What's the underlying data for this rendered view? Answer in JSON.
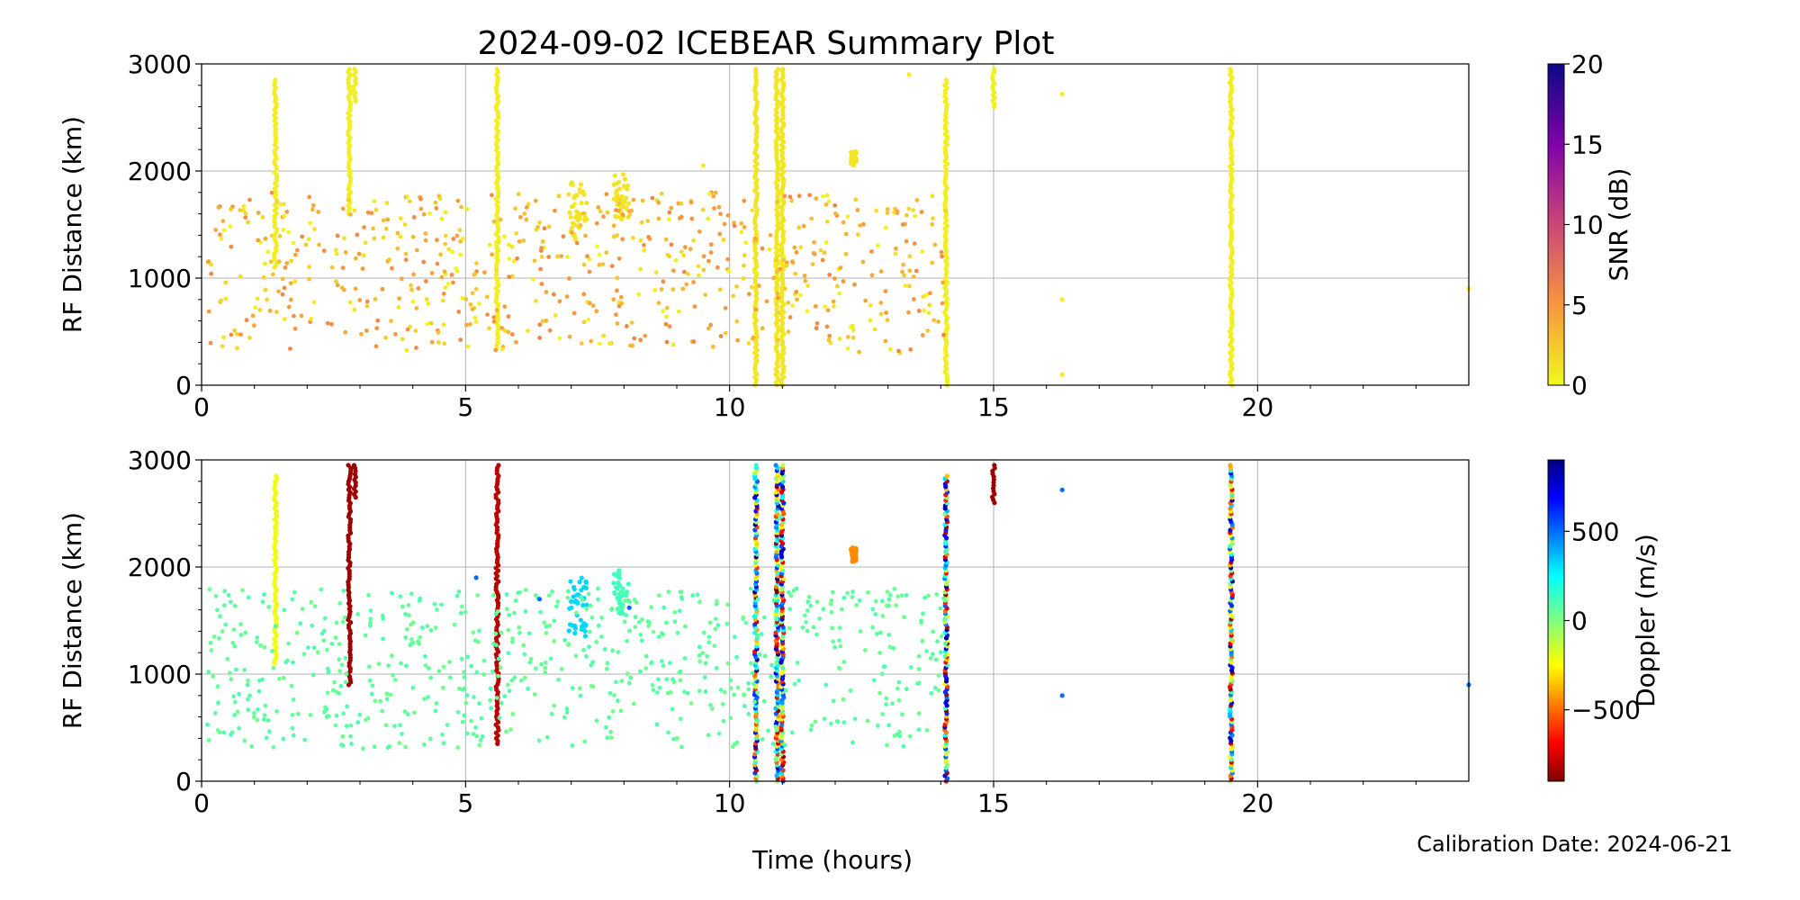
{
  "title": "2024-09-02 ICEBEAR Summary Plot",
  "xlabel": "Time (hours)",
  "calibration_text": "Calibration Date: 2024-06-21",
  "chart_data": [
    {
      "type": "scatter",
      "ylabel": "RF Distance (km)",
      "xlim": [
        0,
        24
      ],
      "ylim": [
        0,
        3000
      ],
      "x_ticks": [
        "0",
        "5",
        "10",
        "15",
        "20"
      ],
      "y_ticks": [
        "0",
        "1000",
        "2000",
        "3000"
      ],
      "grid": true,
      "colorbar": {
        "label": "SNR (dB)",
        "range": [
          0,
          20
        ],
        "ticks": [
          "0",
          "5",
          "10",
          "15",
          "20"
        ],
        "colormap": "plasma_r"
      },
      "series": [
        {
          "kind": "vertical_streak",
          "x": 1.4,
          "y_range": [
            1100,
            2850
          ],
          "value": 0.5
        },
        {
          "kind": "vertical_streak",
          "x": 2.8,
          "y_range": [
            1600,
            2950
          ],
          "value": 0.5
        },
        {
          "kind": "vertical_streak",
          "x": 2.9,
          "y_range": [
            2650,
            2950
          ],
          "value": 0.5
        },
        {
          "kind": "vertical_streak",
          "x": 5.6,
          "y_range": [
            350,
            2950
          ],
          "value": 0.5
        },
        {
          "kind": "vertical_streak",
          "x": 10.5,
          "y_range": [
            0,
            2950
          ],
          "value": 1
        },
        {
          "kind": "vertical_streak",
          "x": 10.9,
          "y_range": [
            0,
            2950
          ],
          "value": 1
        },
        {
          "kind": "vertical_streak",
          "x": 11.0,
          "y_range": [
            0,
            2950
          ],
          "value": 1
        },
        {
          "kind": "vertical_streak",
          "x": 14.1,
          "y_range": [
            0,
            2850
          ],
          "value": 0.5
        },
        {
          "kind": "vertical_streak",
          "x": 15.0,
          "y_range": [
            2600,
            2950
          ],
          "value": 0.5
        },
        {
          "kind": "vertical_streak",
          "x": 19.5,
          "y_range": [
            0,
            2950
          ],
          "value": 0.5
        },
        {
          "kind": "cluster",
          "x_range": [
            6.95,
            7.3
          ],
          "y_range": [
            1350,
            1900
          ],
          "value": 1
        },
        {
          "kind": "cluster",
          "x_range": [
            7.8,
            8.1
          ],
          "y_range": [
            1550,
            1980
          ],
          "value": 1
        },
        {
          "kind": "cluster",
          "x_range": [
            12.3,
            12.4
          ],
          "y_range": [
            2050,
            2180
          ],
          "value": 1
        },
        {
          "kind": "scatter_field",
          "x_range": [
            0.1,
            14.1
          ],
          "y_range": [
            300,
            1800
          ],
          "value_range": [
            0,
            6
          ],
          "count": 700
        },
        {
          "kind": "points",
          "x": [
            16.3,
            16.3,
            16.3,
            24.0,
            13.4,
            9.5
          ],
          "y": [
            2720,
            800,
            100,
            900,
            2900,
            2050
          ],
          "value": 0.5
        }
      ]
    },
    {
      "type": "scatter",
      "ylabel": "RF Distance (km)",
      "xlim": [
        0,
        24
      ],
      "ylim": [
        0,
        3000
      ],
      "x_ticks": [
        "0",
        "5",
        "10",
        "15",
        "20"
      ],
      "y_ticks": [
        "0",
        "1000",
        "2000",
        "3000"
      ],
      "grid": true,
      "colorbar": {
        "label": "Doppler (m/s)",
        "range": [
          -900,
          900
        ],
        "ticks": [
          "500",
          "0",
          "−500"
        ],
        "tick_values": [
          500,
          0,
          -500
        ],
        "colormap": "jet_r"
      },
      "series": [
        {
          "kind": "vertical_streak",
          "x": 1.4,
          "y_range": [
            1100,
            2850
          ],
          "value": -220
        },
        {
          "kind": "vertical_streak",
          "x": 2.8,
          "y_range": [
            900,
            2950
          ],
          "value": -850
        },
        {
          "kind": "vertical_streak",
          "x": 2.9,
          "y_range": [
            2650,
            2950
          ],
          "value": -850
        },
        {
          "kind": "vertical_streak",
          "x": 5.6,
          "y_range": [
            350,
            2950
          ],
          "value": -800
        },
        {
          "kind": "vertical_streak",
          "x": 10.5,
          "y_range": [
            0,
            2950
          ],
          "value_range": [
            -900,
            900
          ]
        },
        {
          "kind": "vertical_streak",
          "x": 10.9,
          "y_range": [
            0,
            2950
          ],
          "value_range": [
            -900,
            900
          ]
        },
        {
          "kind": "vertical_streak",
          "x": 11.0,
          "y_range": [
            0,
            2950
          ],
          "value_range": [
            -900,
            900
          ]
        },
        {
          "kind": "vertical_streak",
          "x": 14.1,
          "y_range": [
            0,
            2850
          ],
          "value_range": [
            -900,
            900
          ]
        },
        {
          "kind": "vertical_streak",
          "x": 15.0,
          "y_range": [
            2600,
            2950
          ],
          "value": -850
        },
        {
          "kind": "vertical_streak",
          "x": 19.5,
          "y_range": [
            0,
            2950
          ],
          "value_range": [
            -900,
            900
          ]
        },
        {
          "kind": "cluster",
          "x_range": [
            6.95,
            7.3
          ],
          "y_range": [
            1350,
            1900
          ],
          "value": 320
        },
        {
          "kind": "cluster",
          "x_range": [
            7.8,
            8.1
          ],
          "y_range": [
            1550,
            1980
          ],
          "value": 120
        },
        {
          "kind": "cluster",
          "x_range": [
            12.3,
            12.4
          ],
          "y_range": [
            2050,
            2180
          ],
          "value": -450
        },
        {
          "kind": "scatter_field",
          "x_range": [
            0.1,
            14.1
          ],
          "y_range": [
            300,
            1800
          ],
          "value": 60,
          "count": 700
        },
        {
          "kind": "points",
          "x": [
            16.3,
            16.3,
            24.0,
            5.2,
            6.4,
            8.1
          ],
          "y": [
            2720,
            800,
            900,
            1900,
            1700,
            1620
          ],
          "value": 500
        }
      ]
    }
  ]
}
